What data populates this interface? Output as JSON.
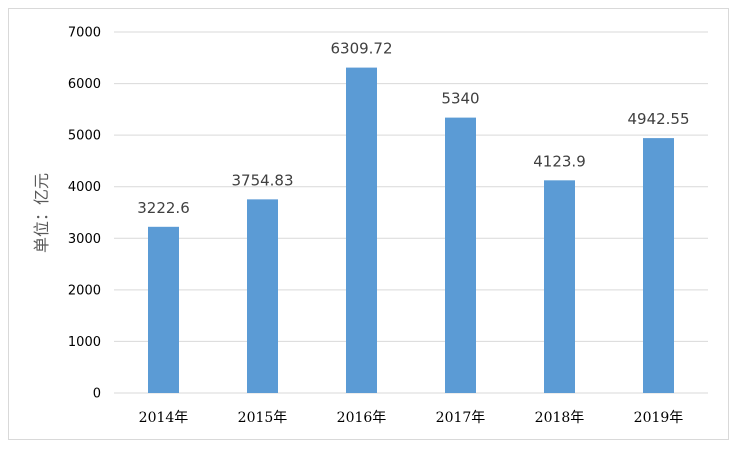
{
  "chart_data": {
    "type": "bar",
    "categories": [
      "2014年",
      "2015年",
      "2016年",
      "2017年",
      "2018年",
      "2019年"
    ],
    "values": [
      3222.6,
      3754.83,
      6309.72,
      5340,
      4123.9,
      4942.55
    ],
    "data_labels": [
      "3222.6",
      "3754.83",
      "6309.72",
      "5340",
      "4123.9",
      "4942.55"
    ],
    "title": "",
    "xlabel": "",
    "ylabel": "单位：亿元",
    "ylim": [
      0,
      7000
    ],
    "yticks": [
      "0",
      "1000",
      "2000",
      "3000",
      "4000",
      "5000",
      "6000",
      "7000"
    ],
    "grid": true,
    "legend": "none",
    "bar_color": "#5b9bd5",
    "grid_color": "#d9d9d9"
  }
}
